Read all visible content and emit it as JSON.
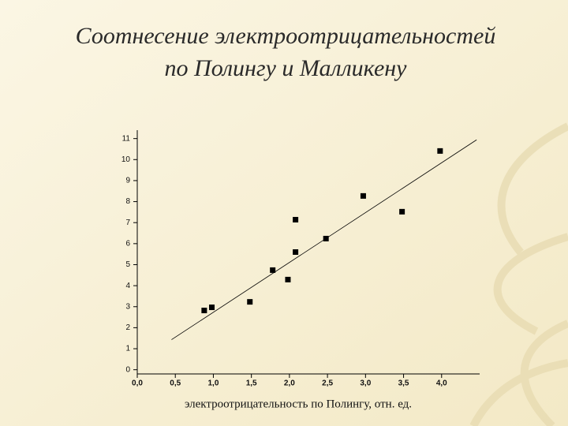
{
  "chart_data": {
    "type": "scatter",
    "title": [
      "Соотнесение электроотрицательностей",
      "по Полингу и Малликену"
    ],
    "x_label": "электроотрицательность по Полингу, отн. ед.",
    "x": [
      0.88,
      0.98,
      1.48,
      1.78,
      1.98,
      2.08,
      2.08,
      2.48,
      2.97,
      3.48,
      3.98
    ],
    "y": [
      2.82,
      2.97,
      3.23,
      4.74,
      4.29,
      7.14,
      5.6,
      6.24,
      8.27,
      7.52,
      10.41
    ],
    "color": "#000000",
    "fit_line": {
      "x": [
        0.45,
        4.46
      ],
      "y": [
        1.43,
        10.94
      ]
    },
    "xlim": [
      0,
      4.5
    ],
    "ylim": [
      -0.2,
      11.4
    ],
    "xticks": [
      {
        "value": 0,
        "label": "0,0"
      },
      {
        "value": 0.5,
        "label": "0,5"
      },
      {
        "value": 1,
        "label": "1,0"
      },
      {
        "value": 1.5,
        "label": "1,5"
      },
      {
        "value": 2,
        "label": "2,0"
      },
      {
        "value": 2.5,
        "label": "2,5"
      },
      {
        "value": 3,
        "label": "3,0"
      },
      {
        "value": 3.5,
        "label": "3,5"
      },
      {
        "value": 4,
        "label": "4,0"
      }
    ],
    "yticks": [
      0,
      1,
      2,
      3,
      4,
      5,
      6,
      7,
      8,
      9,
      10,
      11
    ]
  }
}
